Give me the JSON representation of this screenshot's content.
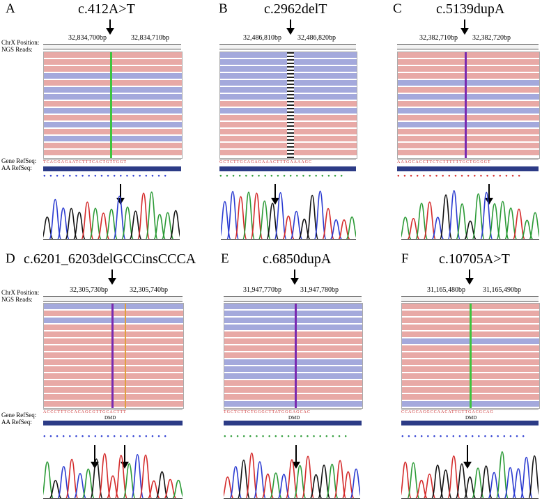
{
  "side_labels": {
    "chrx": "ChrX Position:",
    "ngs": "NGS Reads:",
    "gene": "Gene RefSeq:",
    "aa": "AA RefSeq:"
  },
  "panels": [
    {
      "label": "A",
      "title": "c.412A>T",
      "pos_left": "32,834,700bp",
      "pos_right": "32,834,710bp",
      "gene_seq": "TCAGGAGAATCTTTCACTGTTGGT",
      "aa_seq": "",
      "dmd": "",
      "mark_color": "#3ec43e"
    },
    {
      "label": "B",
      "title": "c.2962delT",
      "pos_left": "32,486,810bp",
      "pos_right": "32,486,820bp",
      "gene_seq": "GCTCTTGCAGAGAAACTTTGAAAAGC",
      "aa_seq": "",
      "dmd": "",
      "mark_color": "#222222"
    },
    {
      "label": "C",
      "title": "c.5139dupA",
      "pos_left": "32,382,710bp",
      "pos_right": "32,382,720bp",
      "gene_seq": "AAAGCACCTTCTCTTTTTTGCTGGGGT",
      "aa_seq": "",
      "dmd": "",
      "mark_color": "#7a2ab0"
    },
    {
      "label": "D",
      "title": "c.6201_6203delGCCinsCCCA",
      "pos_left": "32,305,730bp",
      "pos_right": "32,305,740bp",
      "gene_seq": "ACCCTTTCCACAGCGTTGCACTTT",
      "aa_seq": "",
      "dmd": "DMD",
      "mark_color": "#7a2ab0"
    },
    {
      "label": "E",
      "title": "c.6850dupA",
      "pos_left": "31,947,770bp",
      "pos_right": "31,947,780bp",
      "gene_seq": "TGCTCTTCTGGGCTTATGGGAGCAC",
      "aa_seq": "",
      "dmd": "DMD",
      "mark_color": "#7a2ab0"
    },
    {
      "label": "F",
      "title": "c.10705A>T",
      "pos_left": "31,165,480bp",
      "pos_right": "31,165,490bp",
      "gene_seq": "CCAGCAGGCCAACATTGTTGACGCAG",
      "aa_seq": "",
      "dmd": "DMD",
      "mark_color": "#3ec43e"
    }
  ],
  "trace_colors": {
    "A": "#2a9a35",
    "C": "#2b3bd1",
    "G": "#111111",
    "T": "#d42a2a"
  }
}
